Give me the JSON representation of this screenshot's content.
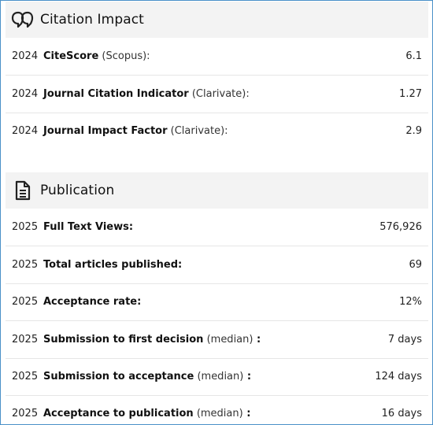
{
  "citation": {
    "title": "Citation Impact",
    "rows": [
      {
        "year": "2024",
        "label": "CiteScore",
        "note": "(Scopus):",
        "suffix": "",
        "value": "6.1"
      },
      {
        "year": "2024",
        "label": "Journal Citation Indicator",
        "note": "(Clarivate):",
        "suffix": "",
        "value": "1.27"
      },
      {
        "year": "2024",
        "label": "Journal Impact Factor",
        "note": "(Clarivate):",
        "suffix": "",
        "value": "2.9"
      }
    ]
  },
  "publication": {
    "title": "Publication",
    "rows": [
      {
        "year": "2025",
        "label": "Full Text Views:",
        "note": "",
        "suffix": "",
        "value": "576,926"
      },
      {
        "year": "2025",
        "label": "Total articles published:",
        "note": "",
        "suffix": "",
        "value": "69"
      },
      {
        "year": "2025",
        "label": "Acceptance rate:",
        "note": "",
        "suffix": "",
        "value": "12%"
      },
      {
        "year": "2025",
        "label": "Submission to first decision",
        "note": "(median)",
        "suffix": " :",
        "value": "7 days"
      },
      {
        "year": "2025",
        "label": "Submission to acceptance",
        "note": "(median)",
        "suffix": " :",
        "value": "124 days"
      },
      {
        "year": "2025",
        "label": "Acceptance to publication",
        "note": "(median)",
        "suffix": " :",
        "value": "16 days"
      }
    ]
  },
  "icons": {
    "citation": "quote-bubble-icon",
    "publication": "document-icon"
  }
}
